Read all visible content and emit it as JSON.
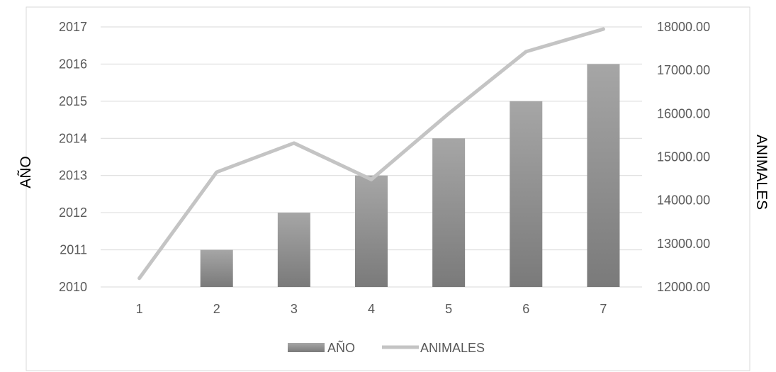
{
  "chart_data": {
    "type": "bar",
    "categories": [
      "1",
      "2",
      "3",
      "4",
      "5",
      "6",
      "7"
    ],
    "series": [
      {
        "name": "AÑO",
        "type": "bar",
        "axis": "left",
        "values": [
          2010,
          2011,
          2012,
          2013,
          2014,
          2015,
          2016
        ]
      },
      {
        "name": "ANIMALES",
        "type": "line",
        "axis": "right",
        "values": [
          12200,
          14650,
          15320,
          14480,
          16000,
          17430,
          17950
        ]
      }
    ],
    "ylabel": "AÑO",
    "y2label": "ANIMALES",
    "ylim": [
      2010,
      2017
    ],
    "y2lim": [
      12000,
      18000
    ],
    "yticks": [
      "2010",
      "2011",
      "2012",
      "2013",
      "2014",
      "2015",
      "2016",
      "2017"
    ],
    "y2ticks": [
      "12000.00",
      "13000.00",
      "14000.00",
      "15000.00",
      "16000.00",
      "17000.00",
      "18000.00"
    ],
    "grid": true,
    "legend": "bottom",
    "colors": {
      "bar_top": "#a6a6a6",
      "bar_bottom": "#7a7a7a",
      "line": "#c4c4c4",
      "grid": "#d9d9d9"
    }
  }
}
